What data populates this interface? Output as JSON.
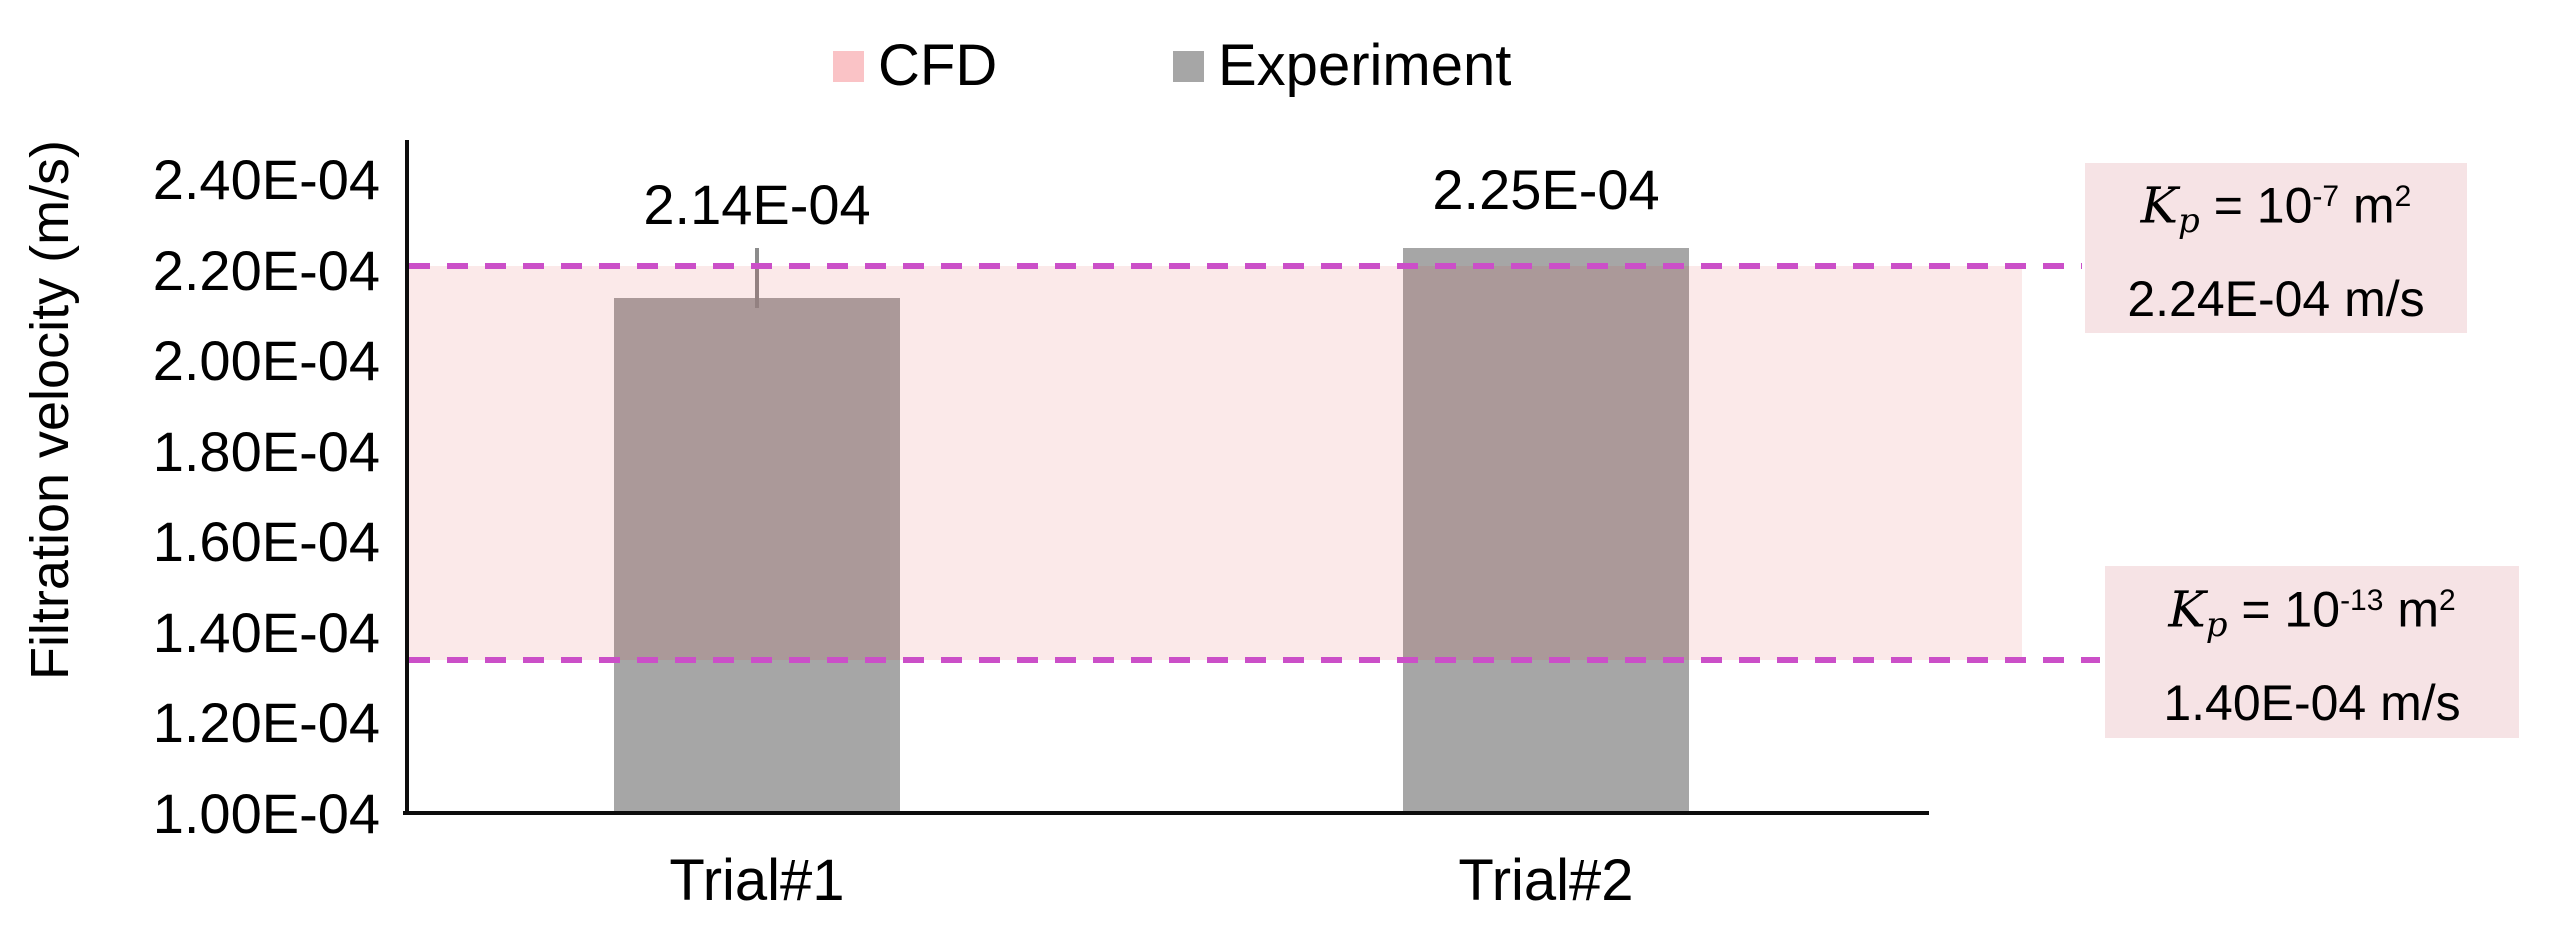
{
  "chart_data": {
    "type": "bar",
    "title": "",
    "ylabel": "Filtration velocity (m/s)",
    "categories": [
      "Trial#1",
      "Trial#2"
    ],
    "series": [
      {
        "name": "Experiment",
        "color": "#a6a6a6",
        "values": [
          0.000214,
          0.000225
        ],
        "data_labels": [
          "2.14E-04",
          "2.25E-04"
        ]
      }
    ],
    "cfd_band": {
      "name": "CFD",
      "legend_color": "#fac3c6",
      "fill_rgba": "rgba(214,40,40,0.10)",
      "line_color": "#cb4fc8",
      "top_value": 0.000224,
      "bottom_value": 0.00014,
      "top_drawn": 0.000221,
      "bottom_drawn": 0.000134
    },
    "error_bar": {
      "category": "Trial#1",
      "top_value": 0.000225
    },
    "y_axis": {
      "min": 0.0001,
      "max": 0.00024,
      "tick_step": 2e-05,
      "tick_labels": [
        "2.40E-04",
        "2.20E-04",
        "2.00E-04",
        "1.80E-04",
        "1.60E-04",
        "1.40E-04",
        "1.20E-04",
        "1.00E-04"
      ]
    },
    "legend": [
      {
        "label": "CFD"
      },
      {
        "label": "Experiment"
      }
    ],
    "annotations": [
      {
        "var": "K",
        "sub": "p",
        "mid": " = 10",
        "exp": "-7",
        "unit": " m",
        "unit_exp": "2",
        "line2": "2.24E-04 m/s"
      },
      {
        "var": "K",
        "sub": "p",
        "mid": " = 10",
        "exp": "-13",
        "unit": " m",
        "unit_exp": "2",
        "line2": "1.40E-04 m/s"
      }
    ]
  }
}
